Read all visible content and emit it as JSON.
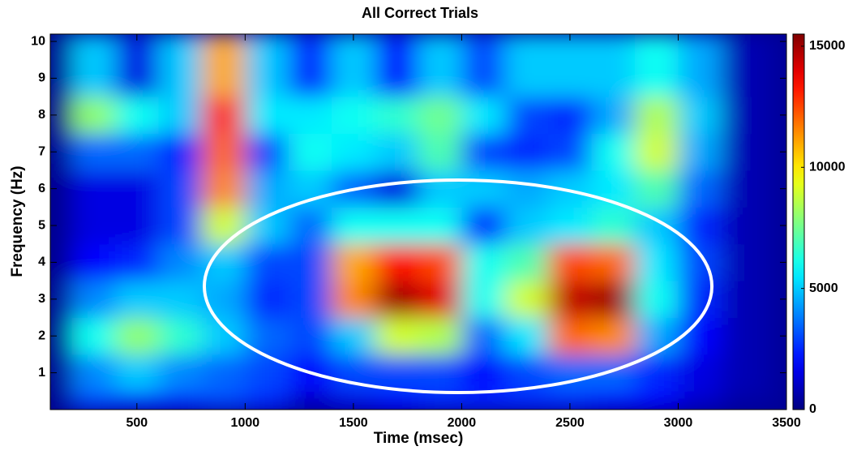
{
  "chart_data": {
    "type": "heatmap",
    "title": "All Correct Trials",
    "x_label": "Time (msec)",
    "y_label": "Frequency (Hz)",
    "colormap": "jet",
    "x_edges": [
      100,
      200,
      400,
      600,
      800,
      1000,
      1200,
      1400,
      1600,
      1800,
      2000,
      2200,
      2400,
      2600,
      2800,
      3000,
      3200,
      3400,
      3500
    ],
    "y_edges": [
      0,
      0.5,
      1.5,
      2.5,
      3.5,
      4.5,
      5.5,
      6.5,
      7.5,
      8.5,
      10.2
    ],
    "z": [
      [
        200,
        3000,
        2500,
        2500,
        3000,
        2500,
        1000,
        1500,
        2000,
        2500,
        2500,
        2500,
        2500,
        2000,
        2000,
        1200,
        600,
        500
      ],
      [
        200,
        4000,
        5000,
        4000,
        3500,
        3000,
        2000,
        3000,
        3000,
        3000,
        2000,
        3000,
        3500,
        3500,
        2500,
        1500,
        800,
        500
      ],
      [
        200,
        6000,
        8000,
        6500,
        5000,
        3500,
        3000,
        5000,
        9000,
        8500,
        3500,
        5500,
        12000,
        11500,
        4500,
        2000,
        800,
        500
      ],
      [
        200,
        4000,
        5000,
        5000,
        4500,
        2500,
        3000,
        11500,
        15000,
        14000,
        6000,
        9000,
        14500,
        15000,
        6000,
        2500,
        800,
        500
      ],
      [
        200,
        2000,
        2500,
        4000,
        5000,
        3000,
        3000,
        11000,
        13500,
        12500,
        6000,
        7000,
        12500,
        12000,
        5500,
        3000,
        800,
        500
      ],
      [
        200,
        1500,
        1500,
        3000,
        9000,
        5000,
        3500,
        6000,
        6000,
        6000,
        2500,
        5000,
        5500,
        6500,
        5000,
        2500,
        800,
        500
      ],
      [
        200,
        1500,
        1500,
        3000,
        11500,
        4500,
        5000,
        3500,
        1500,
        5000,
        5000,
        4500,
        5000,
        5500,
        7000,
        3500,
        800,
        500
      ],
      [
        200,
        3500,
        3500,
        2500,
        12000,
        3000,
        6000,
        5500,
        5000,
        7000,
        3000,
        2500,
        3000,
        6000,
        9000,
        4500,
        800,
        500
      ],
      [
        200,
        8000,
        6000,
        5000,
        13000,
        5500,
        5500,
        6000,
        6500,
        7500,
        5500,
        3000,
        2500,
        4500,
        8500,
        5000,
        800,
        500
      ],
      [
        200,
        5000,
        1500,
        5000,
        11000,
        5000,
        2500,
        5000,
        2000,
        5000,
        3000,
        5000,
        5000,
        5000,
        6000,
        4500,
        800,
        500
      ]
    ],
    "xlim": [
      100,
      3500
    ],
    "ylim": [
      0,
      10.2
    ],
    "zlim": [
      0,
      15500
    ],
    "xticks": [
      500,
      1000,
      1500,
      2000,
      2500,
      3000,
      3500
    ],
    "yticks": [
      1,
      2,
      3,
      4,
      5,
      6,
      7,
      8,
      9,
      10
    ],
    "zticks": [
      0,
      5000,
      10000,
      15000
    ]
  }
}
